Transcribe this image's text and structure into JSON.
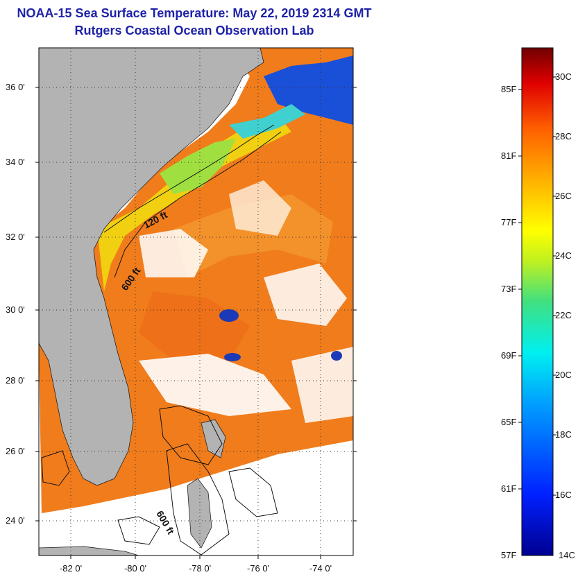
{
  "title": {
    "line1": "NOAA-15 Sea Surface Temperature:  May 22, 2019 2314 GMT",
    "line2": "Rutgers Coastal Ocean Observation Lab"
  },
  "map": {
    "lat_ticks": [
      "36 0'",
      "34 0'",
      "32 0'",
      "30 0'",
      "28 0'",
      "26 0'",
      "24 0'"
    ],
    "lon_ticks": [
      "-82 0'",
      "-80 0'",
      "-78 0'",
      "-76 0'",
      "-74 0'"
    ],
    "isobaths": [
      "120 ft",
      "600 ft",
      "600 ft"
    ]
  },
  "colorbar": {
    "fahrenheit": [
      "85F",
      "81F",
      "77F",
      "73F",
      "69F",
      "65F",
      "61F",
      "57F"
    ],
    "celsius": [
      "30C",
      "28C",
      "26C",
      "24C",
      "22C",
      "20C",
      "18C",
      "16C",
      "14C"
    ]
  },
  "colors": {
    "title": "#1e22a8",
    "land": "#b3b3b3",
    "warm_water": "#f07c1c",
    "cool_water": "#f0d010",
    "cold_water": "#1a4fd8"
  }
}
